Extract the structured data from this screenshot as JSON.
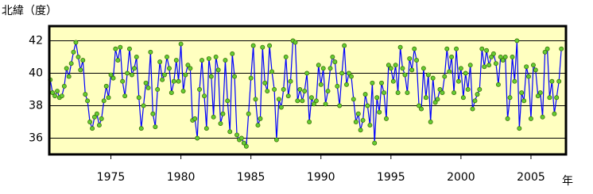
{
  "chart_data": {
    "type": "line",
    "y_label": "北緯（度）",
    "x_label": "年",
    "xlim": [
      1970.6,
      2007.5
    ],
    "ylim": [
      35,
      42.9
    ],
    "xticks": [
      1975,
      1980,
      1985,
      1990,
      1995,
      2000,
      2005
    ],
    "yticks": [
      36,
      38,
      40,
      42
    ],
    "grid": true,
    "color": "#0000ff",
    "marker_color": "#66cc33",
    "background": "#ffffc0",
    "x": [
      1970.67,
      1970.83,
      1971.0,
      1971.17,
      1971.33,
      1971.5,
      1971.67,
      1971.83,
      1972.0,
      1972.17,
      1972.33,
      1972.5,
      1972.67,
      1972.83,
      1973.0,
      1973.17,
      1973.33,
      1973.5,
      1973.67,
      1973.83,
      1974.0,
      1974.17,
      1974.33,
      1974.5,
      1974.67,
      1974.83,
      1975.0,
      1975.17,
      1975.33,
      1975.5,
      1975.67,
      1975.83,
      1976.0,
      1976.17,
      1976.33,
      1976.5,
      1976.67,
      1976.83,
      1977.0,
      1977.17,
      1977.33,
      1977.5,
      1977.67,
      1977.83,
      1978.0,
      1978.17,
      1978.33,
      1978.5,
      1978.67,
      1978.83,
      1979.0,
      1979.17,
      1979.33,
      1979.5,
      1979.67,
      1979.83,
      1980.0,
      1980.17,
      1980.33,
      1980.5,
      1980.67,
      1980.83,
      1981.0,
      1981.17,
      1981.33,
      1981.5,
      1981.67,
      1981.83,
      1982.0,
      1982.17,
      1982.33,
      1982.5,
      1982.67,
      1982.83,
      1983.0,
      1983.17,
      1983.33,
      1983.5,
      1983.67,
      1983.83,
      1984.0,
      1984.17,
      1984.33,
      1984.5,
      1984.67,
      1984.83,
      1985.0,
      1985.17,
      1985.33,
      1985.5,
      1985.67,
      1985.83,
      1986.0,
      1986.17,
      1986.33,
      1986.5,
      1986.67,
      1986.83,
      1987.0,
      1987.17,
      1987.33,
      1987.5,
      1987.67,
      1987.83,
      1988.0,
      1988.17,
      1988.33,
      1988.5,
      1988.67,
      1988.83,
      1989.0,
      1989.17,
      1989.33,
      1989.5,
      1989.67,
      1989.83,
      1990.0,
      1990.17,
      1990.33,
      1990.5,
      1990.67,
      1990.83,
      1991.0,
      1991.17,
      1991.33,
      1991.5,
      1991.67,
      1991.83,
      1992.0,
      1992.17,
      1992.33,
      1992.5,
      1992.67,
      1992.83,
      1993.0,
      1993.17,
      1993.33,
      1993.5,
      1993.67,
      1993.83,
      1994.0,
      1994.17,
      1994.33,
      1994.5,
      1994.67,
      1994.83,
      1995.0,
      1995.17,
      1995.33,
      1995.5,
      1995.67,
      1995.83,
      1996.0,
      1996.17,
      1996.33,
      1996.5,
      1996.67,
      1996.83,
      1997.0,
      1997.17,
      1997.33,
      1997.5,
      1997.67,
      1997.83,
      1998.0,
      1998.17,
      1998.33,
      1998.5,
      1998.67,
      1998.83,
      1999.0,
      1999.17,
      1999.33,
      1999.5,
      1999.67,
      1999.83,
      2000.0,
      2000.17,
      2000.33,
      2000.5,
      2000.67,
      2000.83,
      2001.0,
      2001.17,
      2001.33,
      2001.5,
      2001.67,
      2001.83,
      2002.0,
      2002.17,
      2002.33,
      2002.5,
      2002.67,
      2002.83,
      2003.0,
      2003.17,
      2003.33,
      2003.5,
      2003.67,
      2003.83,
      2004.0,
      2004.17,
      2004.33,
      2004.5,
      2004.67,
      2004.83,
      2005.0,
      2005.17,
      2005.33,
      2005.5,
      2005.67,
      2005.83,
      2006.0,
      2006.17,
      2006.33,
      2006.5,
      2006.67,
      2006.83,
      2007.0,
      2007.17
    ],
    "values": [
      39.6,
      38.8,
      38.6,
      38.9,
      38.5,
      38.6,
      39.2,
      40.3,
      39.8,
      40.6,
      41.3,
      41.9,
      41.0,
      40.2,
      40.8,
      38.7,
      38.3,
      37.0,
      36.6,
      37.3,
      37.5,
      36.8,
      37.2,
      38.3,
      39.2,
      38.5,
      39.9,
      39.7,
      41.5,
      40.8,
      41.6,
      39.5,
      38.6,
      40.0,
      41.5,
      39.9,
      40.3,
      41.0,
      38.5,
      36.6,
      38.0,
      39.4,
      39.1,
      41.3,
      37.5,
      36.7,
      39.0,
      40.7,
      39.6,
      39.9,
      41.0,
      40.3,
      38.8,
      39.5,
      40.8,
      39.5,
      41.8,
      38.9,
      39.9,
      40.5,
      40.3,
      37.1,
      37.2,
      36.0,
      39.0,
      40.8,
      38.6,
      36.6,
      40.9,
      39.8,
      37.3,
      41.0,
      40.2,
      36.9,
      37.5,
      40.8,
      38.3,
      36.4,
      41.2,
      39.8,
      36.2,
      35.9,
      36.0,
      35.7,
      35.5,
      37.5,
      39.7,
      41.7,
      38.4,
      36.8,
      37.2,
      41.6,
      39.4,
      38.9,
      41.7,
      40.1,
      39.0,
      35.9,
      38.4,
      37.9,
      39.0,
      41.0,
      38.6,
      39.5,
      42.0,
      41.9,
      38.3,
      39.0,
      38.3,
      38.9,
      40.0,
      37.0,
      38.5,
      38.1,
      38.3,
      40.5,
      39.3,
      40.3,
      38.1,
      38.9,
      40.3,
      41.0,
      40.7,
      39.2,
      38.0,
      40.0,
      41.7,
      39.3,
      40.0,
      39.8,
      38.4,
      37.0,
      37.5,
      36.5,
      37.1,
      38.7,
      38.0,
      36.8,
      39.4,
      35.7,
      38.5,
      37.6,
      39.4,
      38.8,
      37.2,
      40.5,
      40.3,
      39.5,
      40.5,
      38.8,
      41.6,
      40.3,
      39.9,
      38.8,
      40.9,
      40.2,
      41.5,
      40.8,
      38.0,
      37.8,
      40.3,
      38.5,
      39.9,
      37.0,
      39.7,
      38.2,
      38.4,
      39.0,
      38.8,
      39.8,
      41.5,
      40.1,
      41.0,
      38.8,
      41.5,
      39.5,
      40.3,
      38.5,
      40.0,
      39.0,
      40.5,
      37.8,
      38.3,
      38.7,
      39.0,
      41.5,
      40.4,
      41.4,
      40.5,
      41.0,
      41.2,
      40.6,
      39.3,
      41.0,
      40.8,
      41.0,
      37.2,
      38.5,
      41.0,
      39.5,
      42.0,
      36.6,
      38.8,
      38.3,
      40.4,
      39.8,
      37.2,
      40.5,
      40.2,
      38.6,
      38.8,
      37.3,
      41.3,
      41.5,
      38.5,
      39.5,
      37.5,
      38.5,
      39.5,
      41.5
    ]
  }
}
